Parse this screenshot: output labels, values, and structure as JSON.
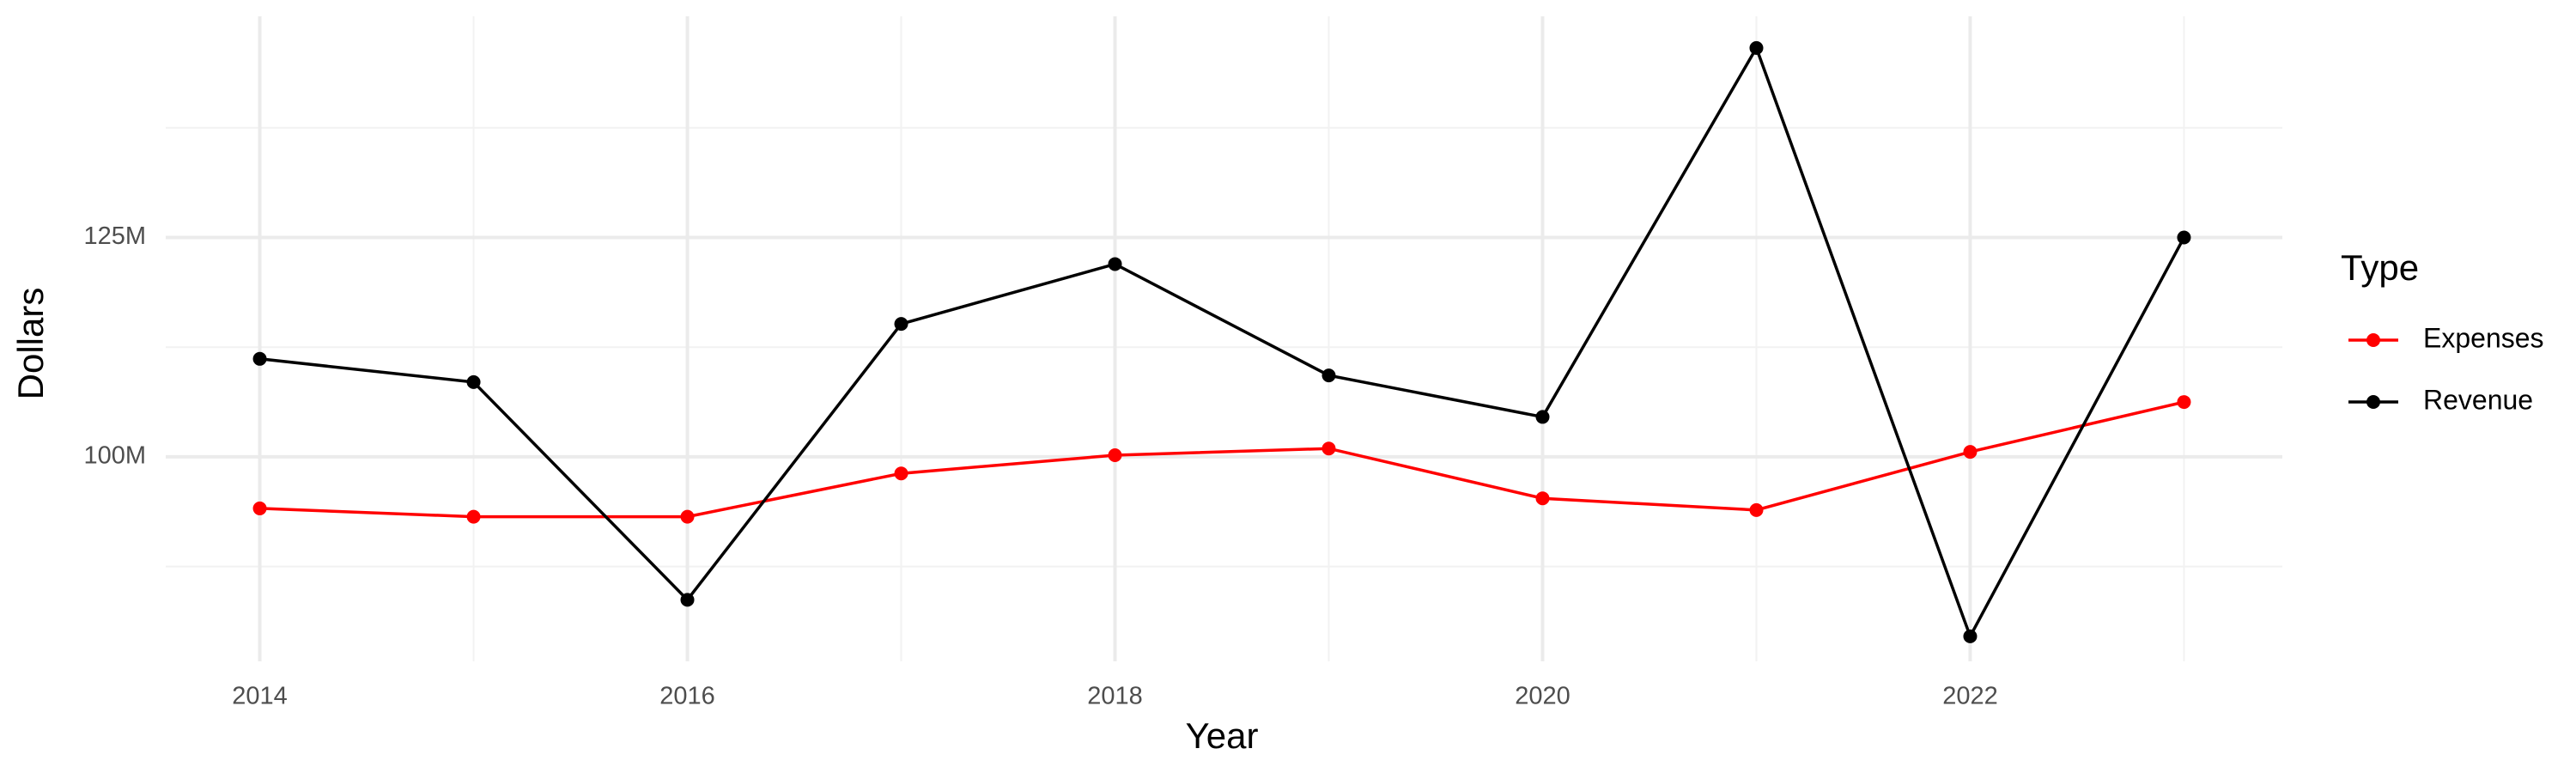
{
  "chart_data": {
    "type": "line",
    "x_label": "Year",
    "y_label": "Dollars",
    "legend_title": "Type",
    "x": [
      2014,
      2015,
      2016,
      2017,
      2018,
      2019,
      2020,
      2021,
      2022,
      2023
    ],
    "series": [
      {
        "name": "Expenses",
        "color": "#ff0000",
        "values": [
          94.13,
          93.18,
          93.18,
          98.11,
          100.19,
          100.95,
          95.27,
          93.94,
          100.57,
          106.25
        ]
      },
      {
        "name": "Revenue",
        "color": "#000000",
        "values": [
          111.17,
          108.52,
          83.71,
          115.15,
          121.97,
          109.28,
          104.55,
          146.59,
          79.55,
          125.0
        ]
      }
    ],
    "xlim": [
      2013.56,
      2023.46
    ],
    "xticks": [
      2014,
      2016,
      2018,
      2020,
      2022
    ],
    "xminor": [
      2015,
      2017,
      2019,
      2021,
      2023
    ],
    "ylim": [
      76.7,
      150.2
    ],
    "yticks": [
      {
        "value": 100,
        "label": "100M"
      },
      {
        "value": 125,
        "label": "125M"
      }
    ],
    "yminor": [
      87.5,
      112.5,
      137.5
    ],
    "grid": true,
    "legend": "right"
  }
}
